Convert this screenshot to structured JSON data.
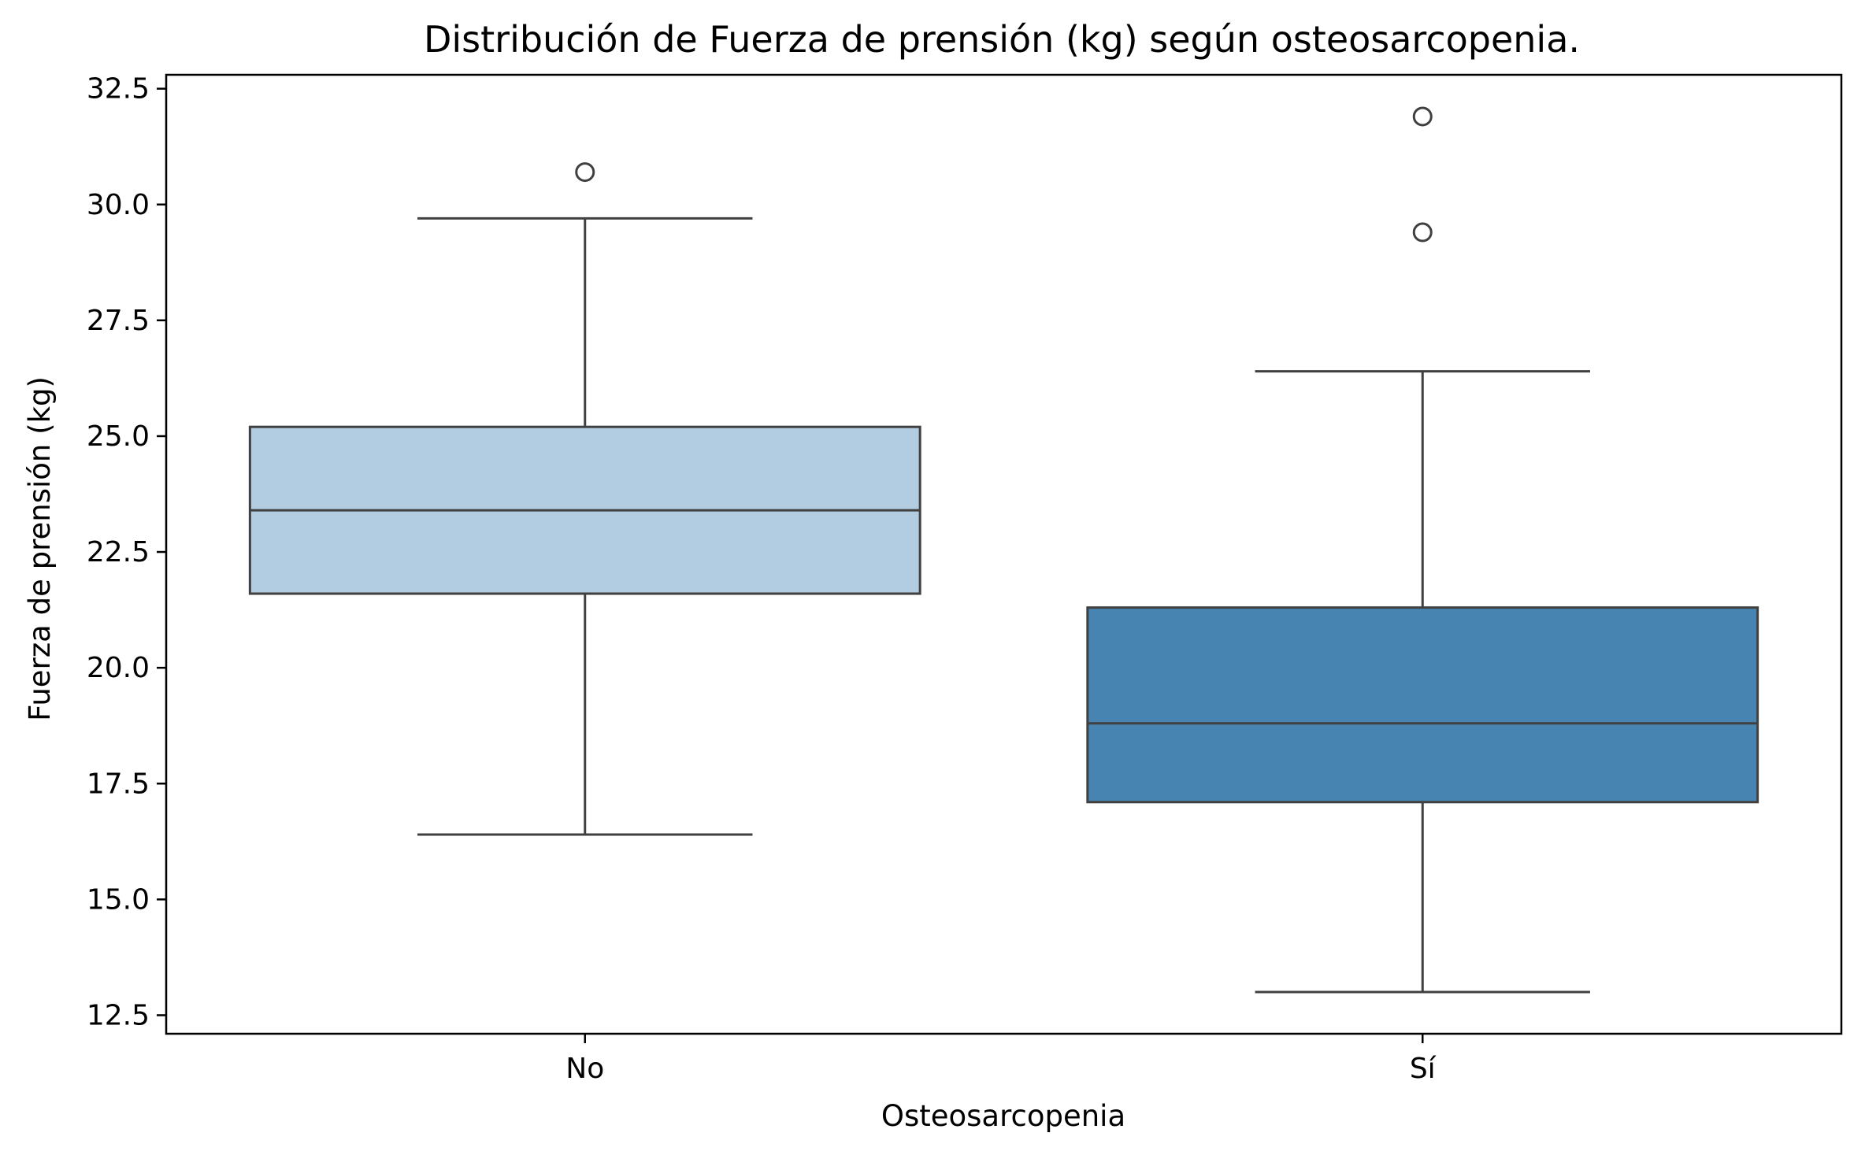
{
  "chart_data": {
    "type": "box",
    "title": "Distribución de Fuerza de prensión (kg) según osteosarcopenia.",
    "xlabel": "Osteosarcopenia",
    "ylabel": "Fuerza de prensión (kg)",
    "ylim": [
      12.1,
      32.8
    ],
    "yticks": [
      12.5,
      15.0,
      17.5,
      20.0,
      22.5,
      25.0,
      27.5,
      30.0,
      32.5
    ],
    "ytick_labels": [
      "12.5",
      "15.0",
      "17.5",
      "20.0",
      "22.5",
      "25.0",
      "27.5",
      "30.0",
      "32.5"
    ],
    "categories": [
      "No",
      "Sí"
    ],
    "grid": false,
    "legend": "none",
    "boxes": [
      {
        "category": "No",
        "whisker_low": 16.4,
        "q1": 21.6,
        "median": 23.4,
        "q3": 25.2,
        "whisker_high": 29.7,
        "outliers": [
          30.7
        ],
        "color": "#b2cde1"
      },
      {
        "category": "Sí",
        "whisker_low": 13.0,
        "q1": 17.1,
        "median": 18.8,
        "q3": 21.3,
        "whisker_high": 26.4,
        "outliers": [
          29.4,
          31.9
        ],
        "color": "#4884b1"
      }
    ],
    "line_color": "#404040"
  }
}
